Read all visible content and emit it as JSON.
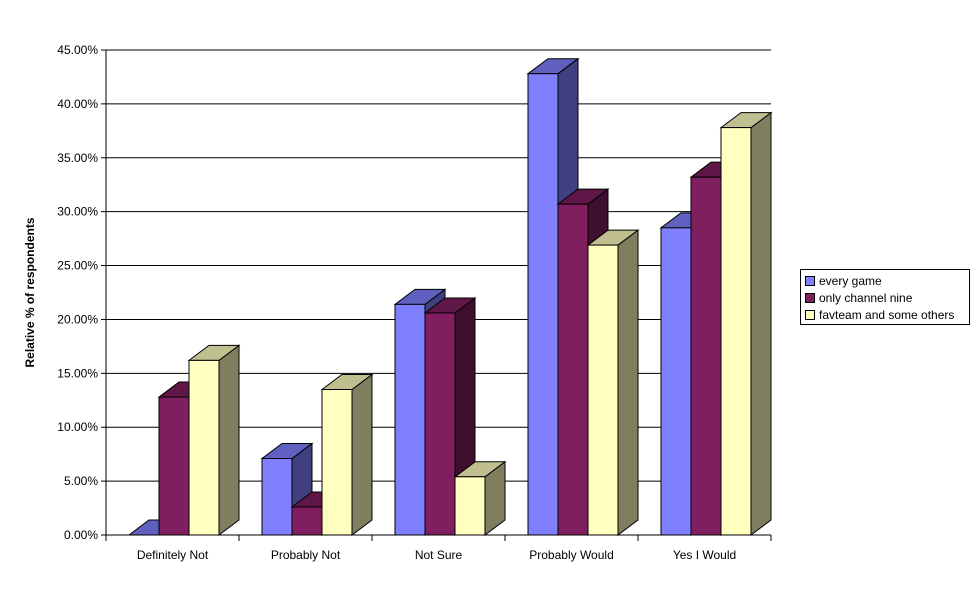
{
  "chart_data": {
    "type": "bar",
    "subtype": "3d-clustered-column",
    "title": "",
    "xlabel": "",
    "ylabel": "Relative % of respondents",
    "ylim": [
      0,
      45
    ],
    "yticks": [
      "0.00%",
      "5.00%",
      "10.00%",
      "15.00%",
      "20.00%",
      "25.00%",
      "30.00%",
      "35.00%",
      "40.00%",
      "45.00%"
    ],
    "grid": true,
    "legend_position": "right",
    "categories": [
      "Definitely Not",
      "Probably Not",
      "Not Sure",
      "Probably Would",
      "Yes I Would"
    ],
    "series": [
      {
        "name": "every game",
        "color": "#8080FF",
        "top": "#6060C0",
        "side": "#404080",
        "values": [
          0,
          7.1,
          21.4,
          42.8,
          28.5
        ]
      },
      {
        "name": "only channel nine",
        "color": "#7F1F5F",
        "top": "#5F1747",
        "side": "#3F0F2F",
        "values": [
          12.8,
          2.6,
          20.6,
          30.7,
          33.2
        ]
      },
      {
        "name": "favteam and some others",
        "color": "#FFFFC0",
        "top": "#BFBF90",
        "side": "#7F7F60",
        "values": [
          16.2,
          13.5,
          5.4,
          26.9,
          37.8
        ]
      }
    ]
  }
}
